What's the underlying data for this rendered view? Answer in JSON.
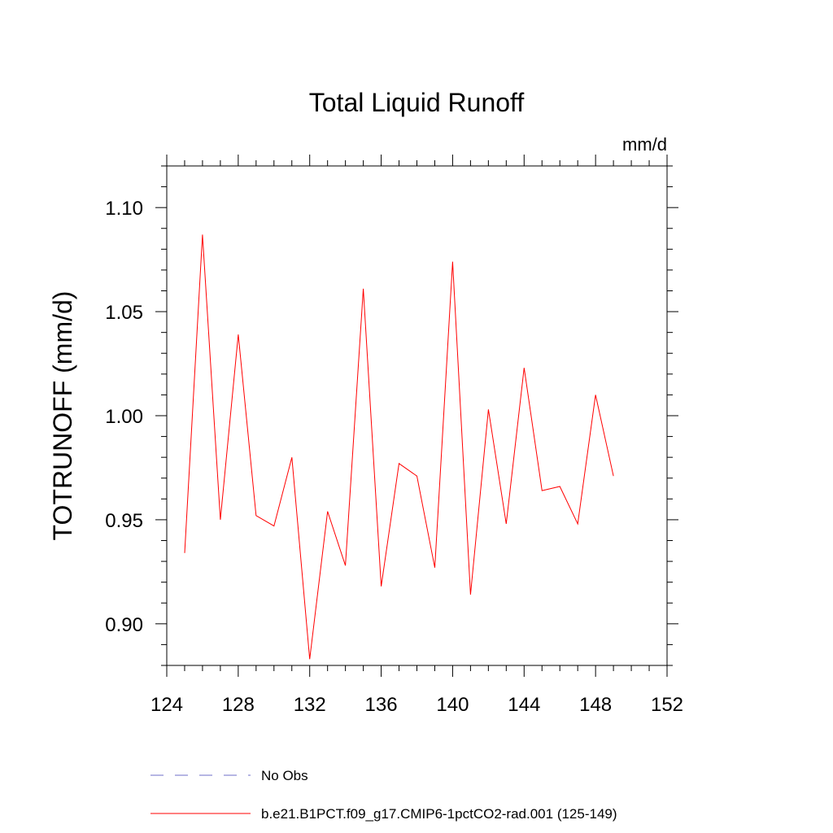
{
  "chart_data": {
    "type": "line",
    "title": "Total Liquid Runoff",
    "units_label": "mm/d",
    "xlabel": "",
    "ylabel": "TOTRUNOFF  (mm/d)",
    "xlim": [
      124,
      152
    ],
    "ylim": [
      0.88,
      1.12
    ],
    "x_ticks": [
      124,
      128,
      132,
      136,
      140,
      144,
      148,
      152
    ],
    "x_tick_labels": [
      "124",
      "128",
      "132",
      "136",
      "140",
      "144",
      "148",
      "152"
    ],
    "y_ticks": [
      0.9,
      0.95,
      1.0,
      1.05,
      1.1
    ],
    "y_tick_labels": [
      "0.90",
      "0.95",
      "1.00",
      "1.05",
      "1.10"
    ],
    "grid": false,
    "legend_placement": "bottom",
    "series": [
      {
        "name": "b.e21.B1PCT.f09_g17.CMIP6-1pctCO2-rad.001 (125-149)",
        "color": "#ff0000",
        "dash": "solid",
        "x": [
          125,
          126,
          127,
          128,
          129,
          130,
          131,
          132,
          133,
          134,
          135,
          136,
          137,
          138,
          139,
          140,
          141,
          142,
          143,
          144,
          145,
          146,
          147,
          148,
          149
        ],
        "y": [
          0.934,
          1.087,
          0.95,
          1.039,
          0.952,
          0.947,
          0.98,
          0.883,
          0.954,
          0.928,
          1.061,
          0.918,
          0.977,
          0.971,
          0.927,
          1.074,
          0.914,
          1.003,
          0.948,
          1.023,
          0.964,
          0.966,
          0.948,
          1.01,
          0.971
        ]
      }
    ],
    "legend": [
      {
        "label": "No Obs",
        "color": "#6c6cc8",
        "dash": "dashed"
      },
      {
        "label": "b.e21.B1PCT.f09_g17.CMIP6-1pctCO2-rad.001 (125-149)",
        "color": "#ff0000",
        "dash": "solid"
      }
    ]
  }
}
